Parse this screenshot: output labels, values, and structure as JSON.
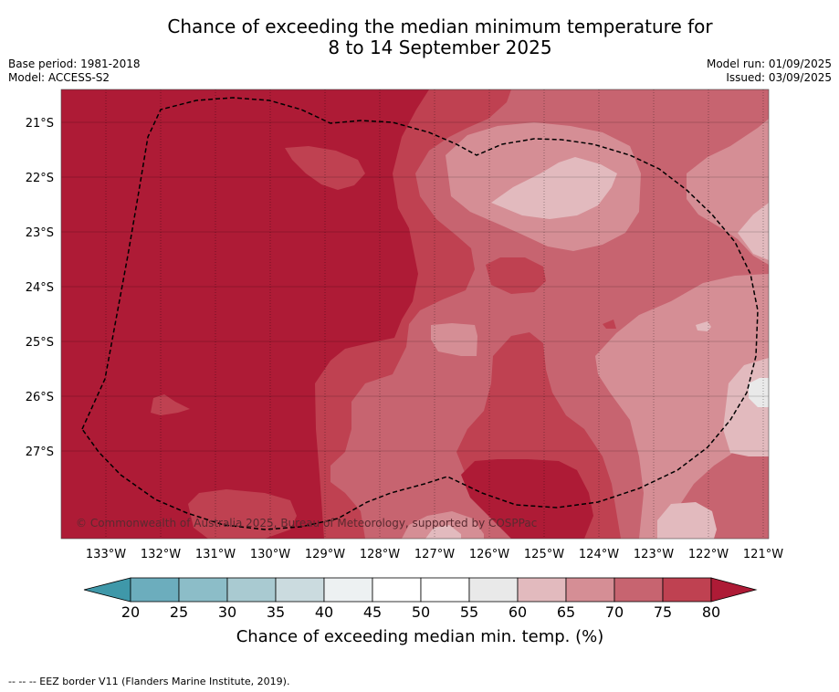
{
  "title_line1": "Chance of exceeding the median minimum temperature for",
  "title_line2": "8 to 14 September 2025",
  "meta_left": [
    "Base period: 1981-2018",
    "Model: ACCESS-S2"
  ],
  "meta_right": [
    "Model run: 01/09/2025",
    "Issued: 03/09/2025"
  ],
  "copyright": "© Commonwealth of Australia 2025, Bureau of Meteorology, supported by COSPPac",
  "footer": "--  --  -- EEZ border V11 (Flanders Marine Institute, 2019).",
  "chart_data": {
    "type": "heatmap",
    "title": "Chance of exceeding the median minimum temperature for 8 to 14 September 2025",
    "lat_ticks": [
      "21°S",
      "22°S",
      "23°S",
      "24°S",
      "25°S",
      "26°S",
      "27°S"
    ],
    "lon_ticks": [
      "133°W",
      "132°W",
      "131°W",
      "130°W",
      "129°W",
      "128°W",
      "127°W",
      "126°W",
      "125°W",
      "124°W",
      "123°W",
      "122°W",
      "121°W"
    ],
    "colorbar": {
      "label": "Chance of exceeding median min. temp. (%)",
      "ticks": [
        "20",
        "25",
        "30",
        "35",
        "40",
        "45",
        "50",
        "55",
        "60",
        "65",
        "70",
        "75",
        "80"
      ],
      "colors": [
        "#3f98a9",
        "#6cadbd",
        "#8cbdc8",
        "#a9cad1",
        "#cbdbdf",
        "#edf1f2",
        "#ffffff",
        "#ffffff",
        "#e9e9e9",
        "#e2babe",
        "#d58e95",
        "#c76470",
        "#bf4151",
        "#ae1b36"
      ],
      "extend": "both"
    },
    "regions": [
      {
        "name": "above-80",
        "color": "#ae1b36"
      },
      {
        "name": "75-80",
        "color": "#bf4151"
      },
      {
        "name": "70-75",
        "color": "#c76470"
      },
      {
        "name": "65-70",
        "color": "#d58e95"
      },
      {
        "name": "60-65",
        "color": "#e2babe"
      },
      {
        "name": "55-60",
        "color": "#e9e9e9"
      }
    ],
    "overlay": "EEZ border (dashed)"
  }
}
